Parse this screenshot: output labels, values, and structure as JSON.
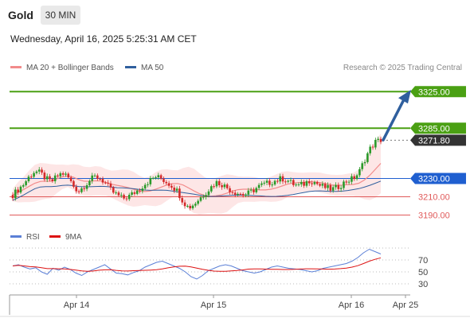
{
  "instrument": {
    "name": "Gold",
    "timeframe": "30 MIN"
  },
  "datetime": "Wednesday, April 16, 2025 5:25:31 AM CET",
  "research_note": "Research © 2025 Trading Central",
  "legend_main": [
    {
      "label": "MA 20 + Bollinger Bands",
      "color": "#f28b8b"
    },
    {
      "label": "MA 50",
      "color": "#2f5f9e"
    }
  ],
  "legend_rsi": [
    {
      "label": "RSI",
      "color": "#5b7fd6"
    },
    {
      "label": "9MA",
      "color": "#dd1111"
    }
  ],
  "colors": {
    "support": "#e05a5a",
    "resistance": "#4aa013",
    "pivot": "#1f5fd0",
    "last": "#333333",
    "arrow": "#2f5f9e",
    "bb_fill": "#fde3e3",
    "up": "#2a9a2a",
    "down": "#d42a2a"
  },
  "chart_data": {
    "type": "candlestick",
    "x_labels": [
      "Apr 14",
      "Apr 15",
      "Apr 16",
      "Apr 25"
    ],
    "price_levels": [
      {
        "value": 3325.0,
        "label": "3325.00",
        "kind": "resistance"
      },
      {
        "value": 3285.0,
        "label": "3285.00",
        "kind": "resistance"
      },
      {
        "value": 3271.8,
        "label": "3271.80",
        "kind": "last"
      },
      {
        "value": 3230.0,
        "label": "3230.00",
        "kind": "pivot"
      },
      {
        "value": 3210.0,
        "label": "3210.00",
        "kind": "support"
      },
      {
        "value": 3190.0,
        "label": "3190.00",
        "kind": "support"
      }
    ],
    "ylim": [
      3180,
      3340
    ],
    "price_path": [
      3212,
      3218,
      3224,
      3232,
      3238,
      3236,
      3230,
      3226,
      3232,
      3236,
      3232,
      3222,
      3216,
      3222,
      3228,
      3232,
      3230,
      3224,
      3216,
      3212,
      3208,
      3210,
      3214,
      3218,
      3224,
      3228,
      3232,
      3230,
      3226,
      3222,
      3216,
      3205,
      3198,
      3202,
      3208,
      3214,
      3220,
      3226,
      3224,
      3220,
      3216,
      3214,
      3212,
      3214,
      3218,
      3222,
      3224,
      3226,
      3228,
      3230,
      3228,
      3224,
      3222,
      3224,
      3228,
      3226,
      3222,
      3220,
      3218,
      3220,
      3224,
      3228,
      3230,
      3236,
      3250,
      3262,
      3270,
      3272
    ],
    "rsi": {
      "levels": [
        70,
        50,
        30
      ],
      "ylim": [
        10,
        90
      ],
      "values": [
        60,
        62,
        58,
        55,
        57,
        50,
        46,
        56,
        53,
        58,
        54,
        48,
        44,
        50,
        54,
        58,
        62,
        55,
        48,
        47,
        45,
        49,
        52,
        58,
        62,
        66,
        68,
        64,
        60,
        56,
        50,
        42,
        38,
        44,
        52,
        56,
        60,
        62,
        60,
        56,
        52,
        50,
        48,
        50,
        54,
        58,
        60,
        58,
        56,
        55,
        54,
        52,
        50,
        52,
        56,
        58,
        60,
        62,
        64,
        68,
        74,
        82,
        88,
        84,
        80
      ]
    }
  }
}
